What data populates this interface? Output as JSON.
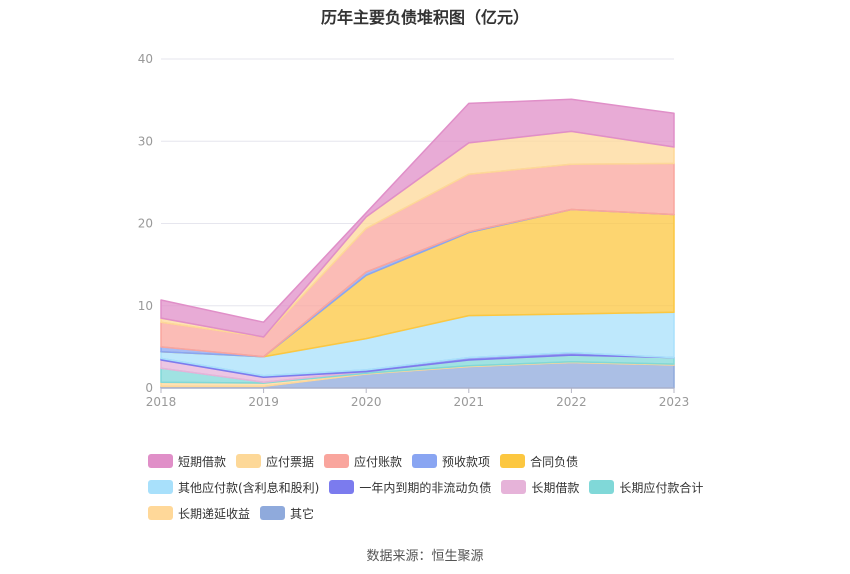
{
  "chart_data": {
    "type": "area",
    "stacked": true,
    "title": "历年主要负债堆积图（亿元）",
    "x": [
      "2018",
      "2019",
      "2020",
      "2021",
      "2022",
      "2023"
    ],
    "ylim": [
      0,
      40
    ],
    "yticks": [
      "0",
      "10",
      "20",
      "30",
      "40"
    ],
    "grid": true,
    "legend_position": "bottom",
    "series": [
      {
        "name": "其它",
        "color": "#8faadc",
        "values": [
          0.2,
          0.2,
          1.7,
          2.6,
          3.1,
          2.8
        ]
      },
      {
        "name": "长期递延收益",
        "color": "#ffd899",
        "values": [
          0.5,
          0.4,
          0.1,
          0.1,
          0.1,
          0.1
        ]
      },
      {
        "name": "长期应付款合计",
        "color": "#80d8d8",
        "values": [
          1.7,
          0.1,
          0.2,
          0.7,
          0.8,
          0.8
        ]
      },
      {
        "name": "长期借款",
        "color": "#e6b3d9",
        "values": [
          1.0,
          0.6,
          0.0,
          0.0,
          0.0,
          0.0
        ]
      },
      {
        "name": "一年内到期的非流动负债",
        "color": "#7b7bee",
        "values": [
          0.2,
          0.2,
          0.2,
          0.3,
          0.3,
          0.0
        ]
      },
      {
        "name": "其他应付款(含利息和股利)",
        "color": "#a8e0fb",
        "values": [
          0.8,
          2.3,
          3.8,
          5.1,
          4.7,
          5.5
        ]
      },
      {
        "name": "合同负债",
        "color": "#fcc740",
        "values": [
          0.0,
          0.0,
          7.7,
          10.1,
          12.7,
          11.9
        ]
      },
      {
        "name": "预收款项",
        "color": "#89a5f2",
        "values": [
          0.6,
          0.0,
          0.4,
          0.1,
          0.0,
          0.0
        ]
      },
      {
        "name": "应付账款",
        "color": "#f9a59d",
        "values": [
          3.0,
          2.4,
          5.3,
          7.0,
          5.5,
          6.2
        ]
      },
      {
        "name": "应付票据",
        "color": "#fdd898",
        "values": [
          0.5,
          0.0,
          1.4,
          3.8,
          4.0,
          2.0
        ]
      },
      {
        "name": "短期借款",
        "color": "#e08fc8",
        "values": [
          2.2,
          1.8,
          0.5,
          4.8,
          3.9,
          4.1
        ]
      }
    ],
    "legend_order": [
      "短期借款",
      "应付票据",
      "应付账款",
      "预收款项",
      "合同负债",
      "其他应付款(含利息和股利)",
      "一年内到期的非流动负债",
      "长期借款",
      "长期应付款合计",
      "长期递延收益",
      "其它"
    ]
  },
  "source": "数据来源：恒生聚源"
}
